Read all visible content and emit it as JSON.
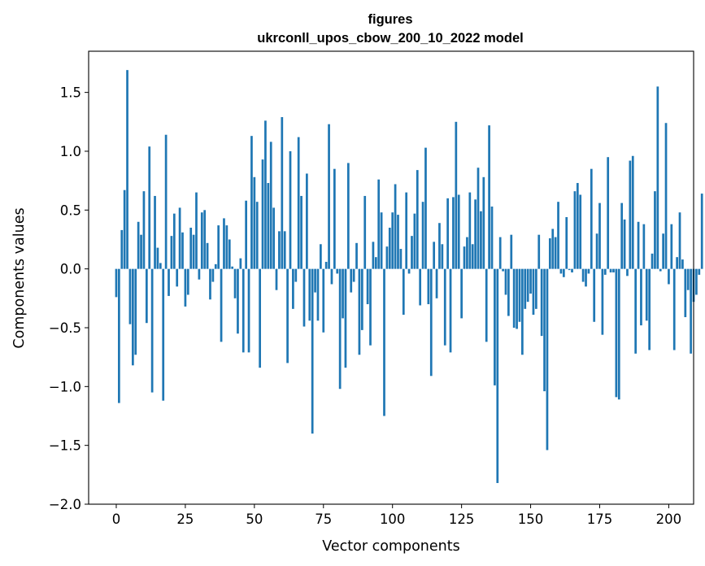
{
  "chart_data": {
    "type": "bar",
    "title_line1": "figures",
    "title_line2": "ukrconll_upos_cbow_200_10_2022 model",
    "xlabel": "Vector components",
    "ylabel": "Components values",
    "xlim": [
      -10,
      209
    ],
    "ylim": [
      -2.0,
      1.85
    ],
    "xticks": [
      0,
      25,
      50,
      75,
      100,
      125,
      150,
      175,
      200
    ],
    "xtick_labels": [
      "0",
      "25",
      "50",
      "75",
      "100",
      "125",
      "150",
      "175",
      "200"
    ],
    "yticks": [
      -2.0,
      -1.5,
      -1.0,
      -0.5,
      0.0,
      0.5,
      1.0,
      1.5
    ],
    "ytick_labels": [
      "−2.0",
      "−1.5",
      "−1.0",
      "−0.5",
      "0.0",
      "0.5",
      "1.0",
      "1.5"
    ],
    "bar_color": "#1f77b4",
    "values": [
      -0.24,
      -1.14,
      0.33,
      0.67,
      1.69,
      -0.47,
      -0.82,
      -0.73,
      0.4,
      0.29,
      0.66,
      -0.46,
      1.04,
      -1.05,
      0.62,
      0.18,
      0.05,
      -1.12,
      1.14,
      -0.23,
      0.28,
      0.47,
      -0.15,
      0.52,
      0.31,
      -0.32,
      -0.22,
      0.35,
      0.29,
      0.65,
      -0.09,
      0.48,
      0.5,
      0.22,
      -0.26,
      -0.11,
      0.04,
      0.37,
      -0.62,
      0.43,
      0.37,
      0.25,
      0.02,
      -0.25,
      -0.55,
      0.09,
      -0.71,
      0.58,
      -0.71,
      1.13,
      0.78,
      0.57,
      -0.84,
      0.93,
      1.26,
      0.73,
      1.08,
      0.52,
      -0.18,
      0.32,
      1.29,
      0.32,
      -0.8,
      1.0,
      -0.34,
      -0.11,
      1.12,
      0.62,
      -0.49,
      0.81,
      -0.44,
      -1.4,
      -0.2,
      -0.44,
      0.21,
      -0.54,
      0.06,
      1.23,
      -0.13,
      0.85,
      -0.04,
      -1.02,
      -0.42,
      -0.84,
      0.9,
      -0.2,
      -0.11,
      0.22,
      -0.73,
      -0.52,
      0.62,
      -0.3,
      -0.65,
      0.23,
      0.1,
      0.76,
      0.48,
      -1.25,
      0.19,
      0.35,
      0.48,
      0.72,
      0.46,
      0.17,
      -0.39,
      0.65,
      -0.04,
      0.28,
      0.47,
      0.84,
      -0.31,
      0.57,
      1.03,
      -0.3,
      -0.91,
      0.23,
      -0.25,
      0.39,
      0.21,
      -0.65,
      0.6,
      -0.71,
      0.61,
      1.25,
      0.63,
      -0.42,
      0.19,
      0.27,
      0.65,
      0.21,
      0.59,
      0.86,
      0.49,
      0.78,
      -0.62,
      1.22,
      0.53,
      -0.99,
      -1.82,
      0.27,
      -0.02,
      -0.22,
      -0.4,
      0.29,
      -0.5,
      -0.51,
      -0.45,
      -0.73,
      -0.34,
      -0.28,
      -0.21,
      -0.39,
      -0.34,
      0.29,
      -0.57,
      -1.04,
      -1.54,
      0.26,
      0.34,
      0.27,
      0.57,
      -0.04,
      -0.07,
      0.44,
      -0.01,
      -0.03,
      0.66,
      0.73,
      0.63,
      -0.11,
      -0.15,
      -0.04,
      0.85,
      -0.45,
      0.3,
      0.56,
      -0.56,
      -0.05,
      0.95,
      -0.03,
      -0.03,
      -1.09,
      -1.11,
      0.56,
      0.42,
      -0.06,
      0.92,
      0.96,
      -0.72,
      0.4,
      -0.48,
      0.38,
      -0.44,
      -0.69,
      0.13,
      0.66,
      1.55,
      -0.02,
      0.3,
      1.24,
      -0.13,
      0.38,
      -0.69,
      0.1,
      0.48,
      0.08,
      -0.41,
      -0.18,
      -0.72,
      -0.28,
      -0.22,
      -0.05,
      0.64
    ]
  }
}
